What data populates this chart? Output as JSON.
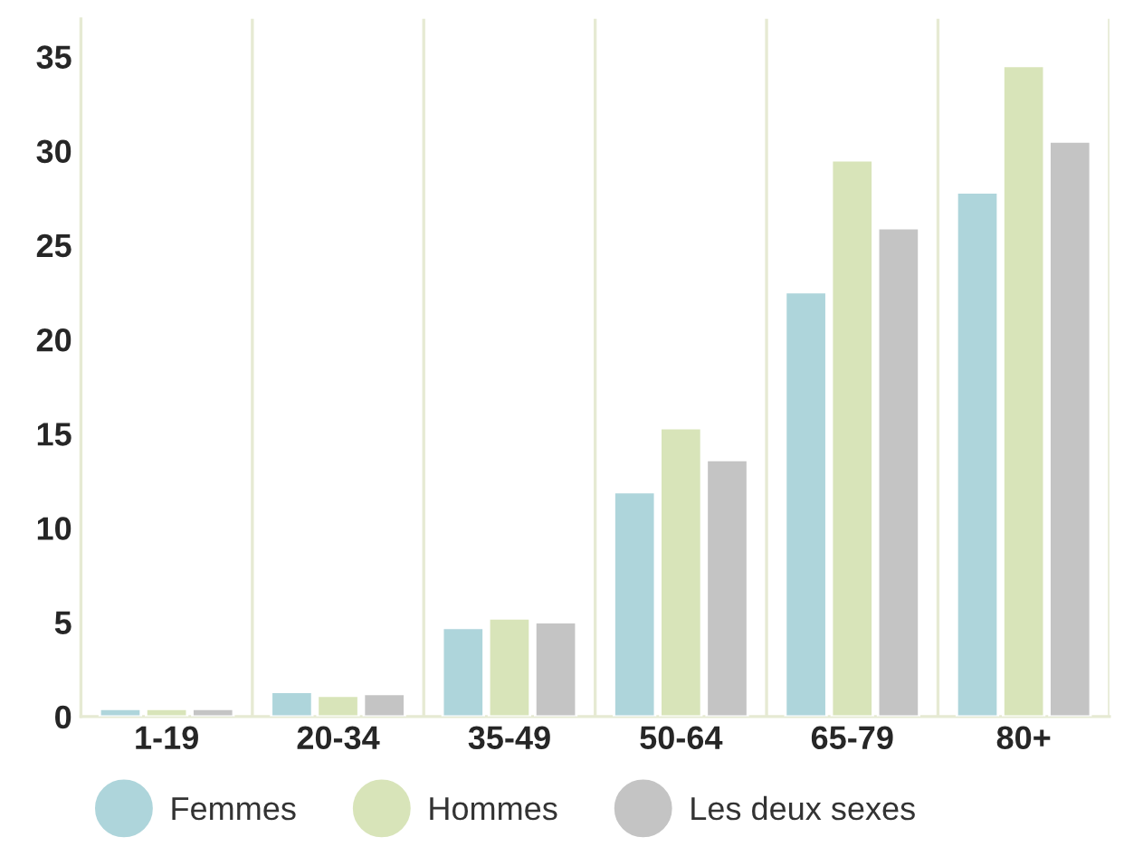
{
  "chart_data": {
    "type": "bar",
    "categories": [
      "1-19",
      "20-34",
      "35-49",
      "50-64",
      "65-79",
      "80+"
    ],
    "series": [
      {
        "name": "Femmes",
        "color": "#aed5db",
        "values": [
          0.4,
          1.3,
          4.7,
          11.9,
          22.5,
          27.8
        ]
      },
      {
        "name": "Hommes",
        "color": "#d8e4b9",
        "values": [
          0.4,
          1.1,
          5.2,
          15.3,
          29.5,
          34.5
        ]
      },
      {
        "name": "Les deux sexes",
        "color": "#c4c4c4",
        "values": [
          0.4,
          1.2,
          5.0,
          13.6,
          25.9,
          30.5
        ]
      }
    ],
    "ylim": [
      0,
      37
    ],
    "yticks": [
      0,
      5,
      10,
      15,
      20,
      25,
      30,
      35
    ],
    "grid": "x",
    "legend": "bottom",
    "marker": "circle"
  }
}
